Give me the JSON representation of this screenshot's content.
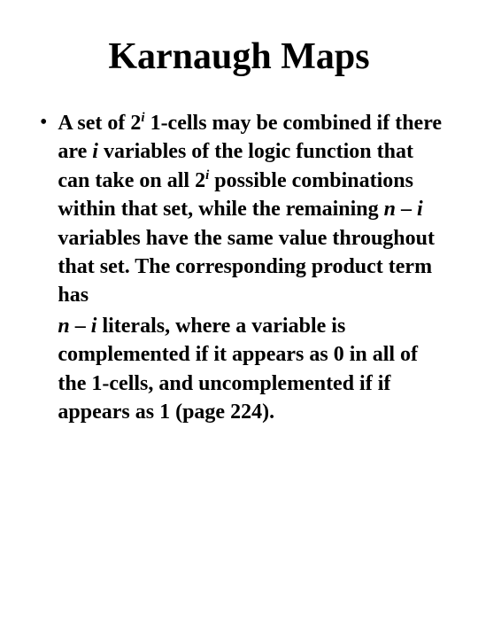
{
  "title": "Karnaugh Maps",
  "bullet": "•",
  "content": {
    "p1_1": "A set of 2",
    "sup1": "i",
    "p1_2": " 1-cells may be combined if there are ",
    "i1": "i",
    "p1_3": " variables of the logic function that can take on all 2",
    "sup2": "i",
    "p1_4": " possible combinations within that set, while the remaining ",
    "i2": "n",
    "p1_5": " – ",
    "i3": "i",
    "p1_6": " variables have the same value throughout that set. The corresponding product term has",
    "i4": "n",
    "p2_1": " – ",
    "i5": "i",
    "p2_2": " literals, where a variable is complemented if it appears as 0 in all of the 1-cells, and uncomplemented if if appears as 1 (page 224)."
  },
  "colors": {
    "background": "#ffffff",
    "text": "#000000"
  },
  "typography": {
    "title_fontsize": 42,
    "body_fontsize": 24,
    "font_family": "Times New Roman",
    "font_weight": "bold"
  }
}
